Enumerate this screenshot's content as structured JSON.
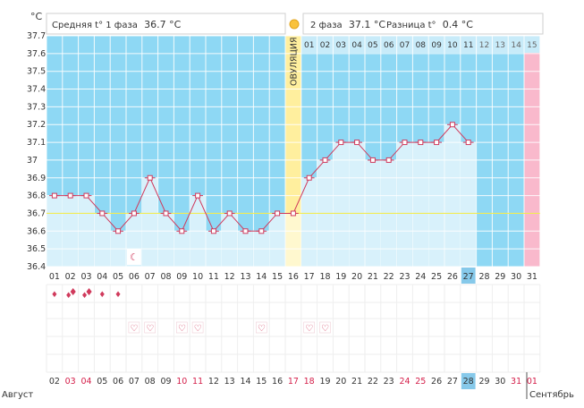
{
  "chart_data": {
    "type": "line",
    "unit_label": "°C",
    "phase1": {
      "label": "Средняя t° 1 фаза",
      "value": "36.7 °C"
    },
    "phase2": {
      "label": "2 фаза",
      "value": "37.1 °C"
    },
    "difference": {
      "label": "Разница t°",
      "value": "0.4 °C"
    },
    "ovulation_label": "ОВУЛЯЦИЯ",
    "ovulation_day_index": 15,
    "ylim": [
      36.4,
      37.7
    ],
    "y_ticks": [
      "36.4",
      "36.5",
      "36.6",
      "36.7",
      "36.8",
      "36.9",
      "37",
      "37.1",
      "37.2",
      "37.3",
      "37.4",
      "37.5",
      "37.6",
      "37.7"
    ],
    "coverline": 36.7,
    "cycle_days": [
      "01",
      "02",
      "03",
      "04",
      "05",
      "06",
      "07",
      "08",
      "09",
      "10",
      "11",
      "12",
      "13",
      "14",
      "15",
      "16",
      "17",
      "18",
      "19",
      "20",
      "21",
      "22",
      "23",
      "24",
      "25",
      "26",
      "27",
      "28",
      "29",
      "30",
      "31"
    ],
    "luteal_days": [
      "01",
      "02",
      "03",
      "04",
      "05",
      "06",
      "07",
      "08",
      "09",
      "10",
      "11",
      "12",
      "13",
      "14",
      "15"
    ],
    "temperatures": [
      36.8,
      36.8,
      36.8,
      36.7,
      36.6,
      36.7,
      36.9,
      36.7,
      36.6,
      36.8,
      36.6,
      36.7,
      36.6,
      36.6,
      36.7,
      36.7,
      36.9,
      37.0,
      37.1,
      37.1,
      37.0,
      37.0,
      37.1,
      37.1,
      37.1,
      37.2,
      37.1,
      null,
      null,
      null,
      null
    ],
    "current_day_index": 26,
    "moon_day_index": 5,
    "flow_levels": [
      1,
      2,
      2,
      1,
      1,
      0,
      0,
      0,
      0,
      0,
      0,
      0,
      0,
      0,
      0,
      0,
      0,
      0,
      0,
      0,
      0,
      0,
      0,
      0,
      0,
      0,
      0,
      0,
      0,
      0,
      0
    ],
    "heart_days": [
      5,
      6,
      8,
      9,
      13,
      16,
      17
    ],
    "dates": [
      "02",
      "03",
      "04",
      "05",
      "06",
      "07",
      "08",
      "09",
      "10",
      "11",
      "12",
      "13",
      "14",
      "15",
      "16",
      "17",
      "18",
      "19",
      "20",
      "21",
      "22",
      "23",
      "24",
      "25",
      "26",
      "27",
      "28",
      "29",
      "30",
      "31",
      "01"
    ],
    "weekend_indices": [
      1,
      2,
      8,
      9,
      15,
      16,
      22,
      23,
      29,
      30
    ],
    "month_left": "Август",
    "month_right": "Сентябрь",
    "colors": {
      "phase1_fill": "#8ed8f4",
      "phase2_fill": "#8ed8f4",
      "bar_fill": "#d8f1fb",
      "ovulation": "#ffef9e",
      "coverline": "#f2ec55",
      "line": "#d03a5c",
      "marker_fill": "#ffffff",
      "weekend": "#d41f4a",
      "pink": "#f9b9cc",
      "highlight": "#86c9ea",
      "grid": "#ffffff",
      "text": "#333333"
    }
  }
}
